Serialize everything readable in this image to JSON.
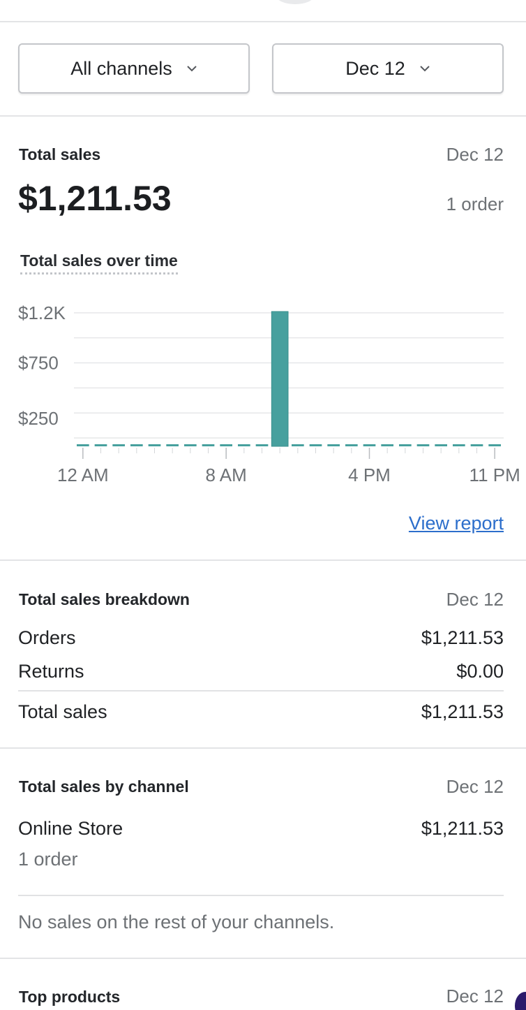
{
  "filters": {
    "channel_label": "All channels",
    "date_label": "Dec 12"
  },
  "total_sales": {
    "title": "Total sales",
    "date": "Dec 12",
    "amount": "$1,211.53",
    "orders": "1 order",
    "chart_title": "Total sales over time",
    "view_report": "View report"
  },
  "chart_data": {
    "type": "bar",
    "title": "Total sales over time",
    "xlabel": "",
    "ylabel": "",
    "y_tick_labels": [
      "$1.2K",
      "$750",
      "$250"
    ],
    "y_ticks": [
      1200,
      750,
      250
    ],
    "ylim": [
      0,
      1211.53
    ],
    "x_tick_labels": [
      "12 AM",
      "8 AM",
      "4 PM",
      "11 PM"
    ],
    "x_tick_hours": [
      0,
      8,
      16,
      23
    ],
    "categories": [
      "0",
      "1",
      "2",
      "3",
      "4",
      "5",
      "6",
      "7",
      "8",
      "9",
      "10",
      "11",
      "12",
      "13",
      "14",
      "15",
      "16",
      "17",
      "18",
      "19",
      "20",
      "21",
      "22",
      "23"
    ],
    "values": [
      0,
      0,
      0,
      0,
      0,
      0,
      0,
      0,
      0,
      0,
      0,
      1211.53,
      0,
      0,
      0,
      0,
      0,
      0,
      0,
      0,
      0,
      0,
      0,
      0
    ],
    "color": "#47a09e",
    "grid": true
  },
  "breakdown": {
    "title": "Total sales breakdown",
    "date": "Dec 12",
    "rows": [
      {
        "label": "Orders",
        "value": "$1,211.53"
      },
      {
        "label": "Returns",
        "value": "$0.00"
      }
    ],
    "total": {
      "label": "Total sales",
      "value": "$1,211.53"
    }
  },
  "by_channel": {
    "title": "Total sales by channel",
    "date": "Dec 12",
    "channel": {
      "name": "Online Store",
      "value": "$1,211.53",
      "orders": "1 order"
    },
    "note": "No sales on the rest of your channels."
  },
  "top_products": {
    "title": "Top products",
    "date": "Dec 12"
  }
}
